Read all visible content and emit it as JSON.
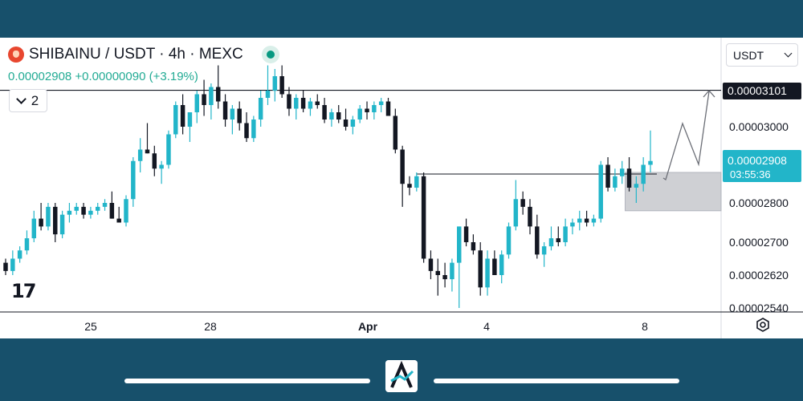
{
  "header": {
    "symbol_line": "SHIBAINU / USDT · 4h · MEXC",
    "price_line": "0.00002908 +0.00000090 (+3.19%)",
    "indicator_count": "2",
    "logo_text": "17"
  },
  "currency": "USDT",
  "colors": {
    "up": "#22b5c9",
    "down": "#131722",
    "accent": "#089981",
    "frame": "#17506b"
  },
  "chart_data": {
    "type": "candlestick",
    "title": "SHIBAINU / USDT · 4h · MEXC",
    "ylim": [
      2.54e-05,
      3.18e-05
    ],
    "y_ticks": [
      "0.00003000",
      "0.00002800",
      "0.00002700",
      "0.00002620",
      "0.00002540"
    ],
    "x_ticks": [
      "25",
      "28",
      "Apr",
      "4",
      "8"
    ],
    "candles": [
      [
        2.65e-05,
        2.66e-05,
        2.62e-05,
        2.63e-05
      ],
      [
        2.63e-05,
        2.68e-05,
        2.62e-05,
        2.66e-05
      ],
      [
        2.66e-05,
        2.69e-05,
        2.65e-05,
        2.68e-05
      ],
      [
        2.68e-05,
        2.73e-05,
        2.67e-05,
        2.71e-05
      ],
      [
        2.71e-05,
        2.78e-05,
        2.7e-05,
        2.76e-05
      ],
      [
        2.76e-05,
        2.8e-05,
        2.73e-05,
        2.74e-05
      ],
      [
        2.74e-05,
        2.8e-05,
        2.73e-05,
        2.79e-05
      ],
      [
        2.79e-05,
        2.8e-05,
        2.7e-05,
        2.72e-05
      ],
      [
        2.72e-05,
        2.78e-05,
        2.71e-05,
        2.77e-05
      ],
      [
        2.77e-05,
        2.8e-05,
        2.75e-05,
        2.78e-05
      ],
      [
        2.78e-05,
        2.8e-05,
        2.77e-05,
        2.79e-05
      ],
      [
        2.79e-05,
        2.8e-05,
        2.76e-05,
        2.77e-05
      ],
      [
        2.77e-05,
        2.79e-05,
        2.76e-05,
        2.78e-05
      ],
      [
        2.78e-05,
        2.8e-05,
        2.77e-05,
        2.79e-05
      ],
      [
        2.79e-05,
        2.81e-05,
        2.78e-05,
        2.8e-05
      ],
      [
        2.8e-05,
        2.83e-05,
        2.76e-05,
        2.76e-05
      ],
      [
        2.76e-05,
        2.79e-05,
        2.75e-05,
        2.75e-05
      ],
      [
        2.75e-05,
        2.82e-05,
        2.74e-05,
        2.81e-05
      ],
      [
        2.81e-05,
        2.92e-05,
        2.79e-05,
        2.91e-05
      ],
      [
        2.91e-05,
        2.97e-05,
        2.88e-05,
        2.94e-05
      ],
      [
        2.94e-05,
        3.01e-05,
        2.93e-05,
        2.93e-05
      ],
      [
        2.93e-05,
        2.95e-05,
        2.87e-05,
        2.89e-05
      ],
      [
        2.89e-05,
        2.91e-05,
        2.85e-05,
        2.9e-05
      ],
      [
        2.9e-05,
        2.99e-05,
        2.89e-05,
        2.98e-05
      ],
      [
        2.98e-05,
        3.07e-05,
        2.97e-05,
        3.06e-05
      ],
      [
        3.06e-05,
        3.09e-05,
        2.98e-05,
        3e-05
      ],
      [
        3e-05,
        3.04e-05,
        2.96e-05,
        3.04e-05
      ],
      [
        3.04e-05,
        3.1e-05,
        3.01e-05,
        3.09e-05
      ],
      [
        3.09e-05,
        3.13e-05,
        3.03e-05,
        3.06e-05
      ],
      [
        3.06e-05,
        3.12e-05,
        3.02e-05,
        3.11e-05
      ],
      [
        3.11e-05,
        3.17e-05,
        3.05e-05,
        3.07e-05
      ],
      [
        3.07e-05,
        3.09e-05,
        3e-05,
        3.02e-05
      ],
      [
        3.02e-05,
        3.06e-05,
        2.98e-05,
        3.05e-05
      ],
      [
        3.05e-05,
        3.07e-05,
        2.99e-05,
        3.01e-05
      ],
      [
        3.01e-05,
        3.04e-05,
        2.96e-05,
        2.97e-05
      ],
      [
        2.97e-05,
        3.03e-05,
        2.96e-05,
        3.02e-05
      ],
      [
        3.02e-05,
        3.1e-05,
        3e-05,
        3.08e-05
      ],
      [
        3.08e-05,
        3.17e-05,
        3.06e-05,
        3.1e-05
      ],
      [
        3.1e-05,
        3.16e-05,
        3.07e-05,
        3.14e-05
      ],
      [
        3.14e-05,
        3.17e-05,
        3.08e-05,
        3.09e-05
      ],
      [
        3.09e-05,
        3.11e-05,
        3.03e-05,
        3.05e-05
      ],
      [
        3.05e-05,
        3.09e-05,
        3.02e-05,
        3.08e-05
      ],
      [
        3.08e-05,
        3.1e-05,
        3.04e-05,
        3.05e-05
      ],
      [
        3.05e-05,
        3.08e-05,
        3.03e-05,
        3.07e-05
      ],
      [
        3.07e-05,
        3.09e-05,
        3.05e-05,
        3.06e-05
      ],
      [
        3.06e-05,
        3.08e-05,
        3.01e-05,
        3.02e-05
      ],
      [
        3.02e-05,
        3.05e-05,
        3e-05,
        3.04e-05
      ],
      [
        3.04e-05,
        3.06e-05,
        3.01e-05,
        3.02e-05
      ],
      [
        3.02e-05,
        3.05e-05,
        2.99e-05,
        3e-05
      ],
      [
        3e-05,
        3.03e-05,
        2.98e-05,
        3.02e-05
      ],
      [
        3.02e-05,
        3.06e-05,
        3.01e-05,
        3.05e-05
      ],
      [
        3.05e-05,
        3.07e-05,
        3.02e-05,
        3.04e-05
      ],
      [
        3.04e-05,
        3.07e-05,
        3.02e-05,
        3.06e-05
      ],
      [
        3.06e-05,
        3.08e-05,
        3.04e-05,
        3.07e-05
      ],
      [
        3.07e-05,
        3.08e-05,
        3.03e-05,
        3.03e-05
      ],
      [
        3.03e-05,
        3.05e-05,
        2.93e-05,
        2.94e-05
      ],
      [
        2.94e-05,
        2.95e-05,
        2.79e-05,
        2.85e-05
      ],
      [
        2.85e-05,
        2.87e-05,
        2.82e-05,
        2.84e-05
      ],
      [
        2.84e-05,
        2.88e-05,
        2.83e-05,
        2.87e-05
      ],
      [
        2.87e-05,
        2.88e-05,
        2.65e-05,
        2.66e-05
      ],
      [
        2.66e-05,
        2.68e-05,
        2.61e-05,
        2.63e-05
      ],
      [
        2.63e-05,
        2.66e-05,
        2.57e-05,
        2.62e-05
      ],
      [
        2.62e-05,
        2.65e-05,
        2.59e-05,
        2.61e-05
      ],
      [
        2.61e-05,
        2.66e-05,
        2.58e-05,
        2.65e-05
      ],
      [
        2.65e-05,
        2.74e-05,
        2.54e-05,
        2.74e-05
      ],
      [
        2.74e-05,
        2.76e-05,
        2.69e-05,
        2.7e-05
      ],
      [
        2.7e-05,
        2.72e-05,
        2.67e-05,
        2.68e-05
      ],
      [
        2.68e-05,
        2.7e-05,
        2.57e-05,
        2.59e-05
      ],
      [
        2.59e-05,
        2.68e-05,
        2.57e-05,
        2.66e-05
      ],
      [
        2.66e-05,
        2.68e-05,
        2.62e-05,
        2.62e-05
      ],
      [
        2.62e-05,
        2.68e-05,
        2.6e-05,
        2.67e-05
      ],
      [
        2.67e-05,
        2.75e-05,
        2.66e-05,
        2.74e-05
      ],
      [
        2.74e-05,
        2.86e-05,
        2.73e-05,
        2.81e-05
      ],
      [
        2.81e-05,
        2.83e-05,
        2.77e-05,
        2.79e-05
      ],
      [
        2.79e-05,
        2.81e-05,
        2.72e-05,
        2.74e-05
      ],
      [
        2.74e-05,
        2.77e-05,
        2.66e-05,
        2.67e-05
      ],
      [
        2.67e-05,
        2.7e-05,
        2.64e-05,
        2.69e-05
      ],
      [
        2.69e-05,
        2.74e-05,
        2.68e-05,
        2.71e-05
      ],
      [
        2.71e-05,
        2.74e-05,
        2.69e-05,
        2.7e-05
      ],
      [
        2.7e-05,
        2.76e-05,
        2.69e-05,
        2.74e-05
      ],
      [
        2.74e-05,
        2.76e-05,
        2.72e-05,
        2.75e-05
      ],
      [
        2.75e-05,
        2.78e-05,
        2.73e-05,
        2.76e-05
      ],
      [
        2.76e-05,
        2.78e-05,
        2.74e-05,
        2.75e-05
      ],
      [
        2.75e-05,
        2.77e-05,
        2.74e-05,
        2.76e-05
      ],
      [
        2.76e-05,
        2.91e-05,
        2.75e-05,
        2.9e-05
      ],
      [
        2.9e-05,
        2.92e-05,
        2.83e-05,
        2.84e-05
      ],
      [
        2.84e-05,
        2.89e-05,
        2.83e-05,
        2.87e-05
      ],
      [
        2.87e-05,
        2.91e-05,
        2.85e-05,
        2.89e-05
      ],
      [
        2.89e-05,
        2.92e-05,
        2.83e-05,
        2.84e-05
      ],
      [
        2.84e-05,
        2.87e-05,
        2.8e-05,
        2.85e-05
      ],
      [
        2.85e-05,
        2.92e-05,
        2.83e-05,
        2.9e-05
      ],
      [
        2.9e-05,
        2.99e-05,
        2.88e-05,
        2.91e-05
      ]
    ],
    "lines": [
      {
        "type": "horizontal",
        "price": 3.101e-05,
        "label": "0.00003101"
      },
      {
        "type": "segment",
        "price": 2.9e-05,
        "from_candle": 58,
        "to_candle": 91
      }
    ],
    "zone": {
      "top": 2.88e-05,
      "bottom": 2.78e-05
    },
    "current_price_label": {
      "price": "0.00002908",
      "countdown": "03:55:36"
    },
    "projection_path": [
      [
        2.93e-05,
        0
      ],
      [
        2.88e-05,
        1
      ],
      [
        3.02e-05,
        2
      ],
      [
        2.89e-05,
        3
      ],
      [
        3.1e-05,
        4
      ]
    ]
  }
}
